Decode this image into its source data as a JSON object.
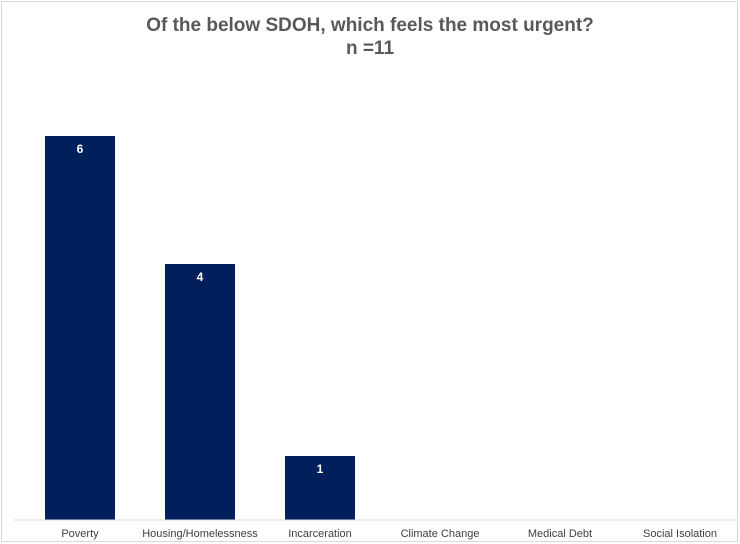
{
  "chart_data": {
    "type": "bar",
    "title": "Of the below SDOH, which feels the most urgent?",
    "subtitle": "n =11",
    "categories": [
      "Poverty",
      "Housing/Homelessness",
      "Incarceration",
      "Climate Change",
      "Medical Debt",
      "Social Isolation"
    ],
    "values": [
      6,
      4,
      1,
      0,
      0,
      0
    ],
    "data_labels": [
      "6",
      "4",
      "1",
      "",
      "",
      ""
    ],
    "ylim": [
      0,
      7
    ],
    "bar_color": "#001F5B",
    "grid": false,
    "legend": "none"
  }
}
